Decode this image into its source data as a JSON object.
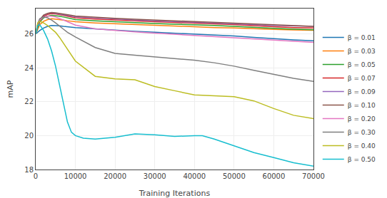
{
  "chart_data": {
    "type": "line",
    "xlabel": "Training Iterations",
    "ylabel": "mAP",
    "xlim": [
      0,
      70000
    ],
    "ylim": [
      18,
      27.5
    ],
    "xticks": [
      0,
      10000,
      20000,
      30000,
      40000,
      50000,
      60000,
      70000
    ],
    "yticks": [
      18,
      20,
      22,
      24,
      26
    ],
    "grid": true,
    "legend": "lower left",
    "series": [
      {
        "name": "β = 0.01",
        "color": "#1f77b4",
        "x": [
          0,
          500,
          1000,
          2000,
          3000,
          4000,
          5000,
          6000,
          7000,
          8000,
          9000,
          10000,
          15000,
          20000,
          25000,
          30000,
          35000,
          40000,
          45000,
          50000,
          55000,
          60000,
          65000,
          70000
        ],
        "values": [
          26.0,
          26.1,
          26.2,
          26.35,
          26.45,
          26.5,
          26.5,
          26.48,
          26.45,
          26.42,
          26.4,
          26.38,
          26.3,
          26.22,
          26.15,
          26.1,
          26.05,
          26.0,
          25.95,
          25.88,
          25.8,
          25.72,
          25.65,
          25.6
        ]
      },
      {
        "name": "β = 0.03",
        "color": "#ff7f0e",
        "x": [
          0,
          500,
          1000,
          2000,
          3000,
          4000,
          5000,
          6000,
          7000,
          8000,
          9000,
          10000,
          15000,
          20000,
          25000,
          30000,
          35000,
          40000,
          45000,
          50000,
          55000,
          60000,
          65000,
          70000
        ],
        "values": [
          26.0,
          26.3,
          26.55,
          26.75,
          26.85,
          26.9,
          26.88,
          26.85,
          26.82,
          26.78,
          26.75,
          26.72,
          26.65,
          26.6,
          26.55,
          26.5,
          26.45,
          26.42,
          26.38,
          26.35,
          26.3,
          26.27,
          26.24,
          26.22
        ]
      },
      {
        "name": "β = 0.05",
        "color": "#2ca02c",
        "x": [
          0,
          500,
          1000,
          2000,
          3000,
          4000,
          5000,
          6000,
          7000,
          8000,
          9000,
          10000,
          15000,
          20000,
          25000,
          30000,
          35000,
          40000,
          45000,
          50000,
          55000,
          60000,
          65000,
          70000
        ],
        "values": [
          26.0,
          26.4,
          26.7,
          26.95,
          27.05,
          27.1,
          27.08,
          27.05,
          27.0,
          26.95,
          26.9,
          26.85,
          26.78,
          26.72,
          26.67,
          26.62,
          26.58,
          26.55,
          26.5,
          26.45,
          26.38,
          26.33,
          26.28,
          26.25
        ]
      },
      {
        "name": "β = 0.07",
        "color": "#d62728",
        "x": [
          0,
          500,
          1000,
          2000,
          3000,
          4000,
          5000,
          6000,
          7000,
          8000,
          9000,
          10000,
          15000,
          20000,
          25000,
          30000,
          35000,
          40000,
          45000,
          50000,
          55000,
          60000,
          65000,
          70000
        ],
        "values": [
          26.0,
          26.45,
          26.75,
          27.05,
          27.15,
          27.2,
          27.18,
          27.15,
          27.1,
          27.05,
          27.0,
          26.95,
          26.88,
          26.82,
          26.77,
          26.72,
          26.68,
          26.65,
          26.6,
          26.55,
          26.48,
          26.43,
          26.38,
          26.35
        ]
      },
      {
        "name": "β = 0.09",
        "color": "#9467bd",
        "x": [
          0,
          500,
          1000,
          2000,
          3000,
          4000,
          5000,
          6000,
          7000,
          8000,
          9000,
          10000,
          15000,
          20000,
          25000,
          30000,
          35000,
          40000,
          45000,
          50000,
          55000,
          60000,
          65000,
          70000
        ],
        "values": [
          26.0,
          26.5,
          26.8,
          27.1,
          27.2,
          27.25,
          27.22,
          27.18,
          27.14,
          27.1,
          27.06,
          27.02,
          26.95,
          26.88,
          26.83,
          26.78,
          26.74,
          26.7,
          26.65,
          26.6,
          26.55,
          26.5,
          26.47,
          26.45
        ]
      },
      {
        "name": "β = 0.10",
        "color": "#8c564b",
        "x": [
          0,
          500,
          1000,
          2000,
          3000,
          4000,
          5000,
          6000,
          7000,
          8000,
          9000,
          10000,
          15000,
          20000,
          25000,
          30000,
          35000,
          40000,
          45000,
          50000,
          55000,
          60000,
          65000,
          70000
        ],
        "values": [
          26.0,
          26.52,
          26.82,
          27.12,
          27.22,
          27.27,
          27.25,
          27.22,
          27.18,
          27.14,
          27.1,
          27.06,
          26.98,
          26.92,
          26.87,
          26.82,
          26.77,
          26.73,
          26.68,
          26.63,
          26.57,
          26.52,
          26.48,
          26.45
        ]
      },
      {
        "name": "β = 0.20",
        "color": "#e377c2",
        "x": [
          0,
          500,
          1000,
          2000,
          3000,
          4000,
          5000,
          6000,
          7000,
          8000,
          9000,
          10000,
          15000,
          20000,
          25000,
          30000,
          35000,
          40000,
          45000,
          50000,
          55000,
          60000,
          65000,
          70000
        ],
        "values": [
          26.0,
          26.55,
          26.82,
          27.0,
          27.05,
          27.05,
          27.0,
          26.92,
          26.82,
          26.72,
          26.62,
          26.52,
          26.3,
          26.2,
          26.12,
          26.05,
          25.98,
          25.92,
          25.85,
          25.78,
          25.7,
          25.62,
          25.55,
          25.5
        ]
      },
      {
        "name": "β = 0.30",
        "color": "#7f7f7f",
        "x": [
          0,
          500,
          1000,
          2000,
          3000,
          4000,
          5000,
          6000,
          7000,
          8000,
          9000,
          10000,
          15000,
          20000,
          25000,
          30000,
          35000,
          40000,
          45000,
          50000,
          55000,
          60000,
          65000,
          70000
        ],
        "values": [
          26.0,
          26.6,
          26.9,
          27.0,
          26.95,
          26.82,
          26.65,
          26.45,
          26.28,
          26.1,
          25.95,
          25.82,
          25.2,
          24.85,
          24.75,
          24.65,
          24.55,
          24.45,
          24.3,
          24.1,
          23.85,
          23.6,
          23.38,
          23.2
        ]
      },
      {
        "name": "β = 0.40",
        "color": "#bcbd22",
        "x": [
          0,
          500,
          1000,
          2000,
          3000,
          4000,
          5000,
          6000,
          7000,
          8000,
          9000,
          10000,
          15000,
          20000,
          25000,
          30000,
          35000,
          40000,
          45000,
          50000,
          55000,
          60000,
          65000,
          70000
        ],
        "values": [
          26.0,
          26.65,
          26.75,
          26.65,
          26.5,
          26.3,
          26.1,
          25.8,
          25.45,
          25.1,
          24.75,
          24.4,
          23.5,
          23.35,
          23.3,
          22.9,
          22.65,
          22.4,
          22.35,
          22.3,
          22.05,
          21.6,
          21.2,
          21.0
        ]
      },
      {
        "name": "β = 0.50",
        "color": "#17becf",
        "x": [
          0,
          500,
          1000,
          2000,
          3000,
          4000,
          5000,
          6000,
          7000,
          8000,
          9000,
          10000,
          12000,
          15000,
          20000,
          25000,
          30000,
          35000,
          40000,
          42000,
          45000,
          50000,
          55000,
          60000,
          65000,
          70000
        ],
        "values": [
          26.0,
          26.5,
          26.55,
          26.2,
          25.7,
          25.0,
          24.1,
          23.0,
          21.8,
          20.8,
          20.2,
          20.0,
          19.85,
          19.8,
          19.9,
          20.1,
          20.05,
          19.95,
          20.0,
          20.0,
          19.8,
          19.4,
          19.0,
          18.7,
          18.4,
          18.2
        ]
      }
    ]
  }
}
